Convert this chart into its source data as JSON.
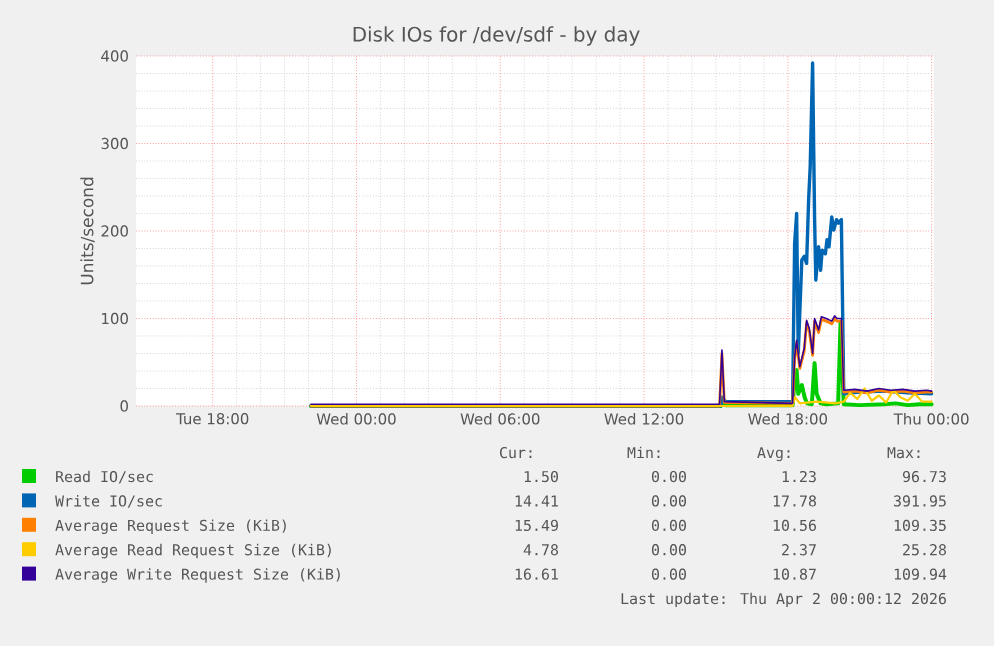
{
  "chart_data": {
    "type": "line",
    "title": "Disk IOs for /dev/sdf - by day",
    "ylabel": "Units/second",
    "xlim": [
      "2026-03-31T14:48",
      "2026-04-02T00:06"
    ],
    "xticks": [
      {
        "value": "2026-03-31T18:00",
        "label": "Tue 18:00"
      },
      {
        "value": "2026-04-01T00:00",
        "label": "Wed 00:00"
      },
      {
        "value": "2026-04-01T06:00",
        "label": "Wed 06:00"
      },
      {
        "value": "2026-04-01T12:00",
        "label": "Wed 12:00"
      },
      {
        "value": "2026-04-01T18:00",
        "label": "Wed 18:00"
      },
      {
        "value": "2026-04-02T00:00",
        "label": "Thu 00:00"
      }
    ],
    "ylim": [
      0,
      400
    ],
    "yticks": [
      0,
      100,
      200,
      300,
      400
    ],
    "grid": true,
    "legend": "bottom",
    "marker": "none",
    "line_style": "solid",
    "series": [
      {
        "name": "Read IO/sec",
        "color": "#00cc00",
        "x": [
          "2026-03-31T22:06",
          "2026-04-01T15:12",
          "2026-04-01T15:15",
          "2026-04-01T15:24",
          "2026-04-01T18:12",
          "2026-04-01T18:17",
          "2026-04-01T18:22",
          "2026-04-01T18:26",
          "2026-04-01T18:35",
          "2026-04-01T18:42",
          "2026-04-01T18:48",
          "2026-04-01T19:00",
          "2026-04-01T19:07",
          "2026-04-01T19:12",
          "2026-04-01T19:22",
          "2026-04-01T19:36",
          "2026-04-01T20:06",
          "2026-04-01T20:12",
          "2026-04-01T20:20",
          "2026-04-01T21:00",
          "2026-04-01T22:00",
          "2026-04-01T22:30",
          "2026-04-01T23:00",
          "2026-04-01T23:30",
          "2026-04-02T00:00"
        ],
        "values": [
          0,
          0,
          2,
          1,
          1,
          30,
          41,
          14,
          24,
          10,
          3,
          2,
          49,
          14,
          3,
          2,
          3,
          96,
          2,
          1,
          2,
          3,
          1,
          2,
          2
        ]
      },
      {
        "name": "Write IO/sec",
        "color": "#0066b3",
        "x": [
          "2026-03-31T22:06",
          "2026-04-01T15:12",
          "2026-04-01T15:15",
          "2026-04-01T15:24",
          "2026-04-01T18:12",
          "2026-04-01T18:17",
          "2026-04-01T18:22",
          "2026-04-01T18:26",
          "2026-04-01T18:35",
          "2026-04-01T18:41",
          "2026-04-01T18:47",
          "2026-04-01T18:52",
          "2026-04-01T18:56",
          "2026-04-01T19:02",
          "2026-04-01T19:07",
          "2026-04-01T19:10",
          "2026-04-01T19:17",
          "2026-04-01T19:22",
          "2026-04-01T19:26",
          "2026-04-01T19:34",
          "2026-04-01T19:38",
          "2026-04-01T19:43",
          "2026-04-01T19:50",
          "2026-04-01T19:55",
          "2026-04-01T20:02",
          "2026-04-01T20:07",
          "2026-04-01T20:14",
          "2026-04-01T20:20",
          "2026-04-01T21:00",
          "2026-04-01T22:00",
          "2026-04-01T23:00",
          "2026-04-02T00:00"
        ],
        "values": [
          0,
          0,
          10,
          5,
          5,
          186,
          220,
          60,
          167,
          171,
          163,
          235,
          274,
          392,
          213,
          144,
          182,
          155,
          178,
          174,
          190,
          182,
          216,
          201,
          213,
          209,
          213,
          14,
          16,
          17,
          15,
          14
        ]
      },
      {
        "name": "Average Request Size (KiB)",
        "color": "#ff8000",
        "x": [
          "2026-03-31T22:06",
          "2026-04-01T15:09",
          "2026-04-01T15:15",
          "2026-04-01T15:21",
          "2026-04-01T18:12",
          "2026-04-01T18:17",
          "2026-04-01T18:22",
          "2026-04-01T18:30",
          "2026-04-01T18:41",
          "2026-04-01T18:47",
          "2026-04-01T18:54",
          "2026-04-01T19:02",
          "2026-04-01T19:07",
          "2026-04-01T19:17",
          "2026-04-01T19:24",
          "2026-04-01T19:36",
          "2026-04-01T19:50",
          "2026-04-01T19:57",
          "2026-04-01T20:03",
          "2026-04-01T20:14",
          "2026-04-01T20:20",
          "2026-04-01T20:48",
          "2026-04-01T21:18",
          "2026-04-01T21:48",
          "2026-04-01T22:18",
          "2026-04-01T22:48",
          "2026-04-01T23:18",
          "2026-04-01T23:48",
          "2026-04-02T00:00"
        ],
        "values": [
          0,
          0,
          60,
          4,
          3,
          53,
          72,
          43,
          63,
          95,
          85,
          58,
          97,
          84,
          99,
          97,
          94,
          100,
          97,
          97,
          16,
          17,
          15,
          18,
          16,
          17,
          15,
          16,
          16
        ]
      },
      {
        "name": "Average Read Request Size (KiB)",
        "color": "#ffcc00",
        "x": [
          "2026-03-31T22:06",
          "2026-04-01T18:12",
          "2026-04-01T18:18",
          "2026-04-01T18:30",
          "2026-04-01T19:12",
          "2026-04-01T20:00",
          "2026-04-01T20:20",
          "2026-04-01T20:36",
          "2026-04-01T20:54",
          "2026-04-01T21:12",
          "2026-04-01T21:30",
          "2026-04-01T21:48",
          "2026-04-01T22:06",
          "2026-04-01T22:24",
          "2026-04-01T22:42",
          "2026-04-01T23:00",
          "2026-04-01T23:18",
          "2026-04-01T23:36",
          "2026-04-02T00:00"
        ],
        "values": [
          0,
          0,
          10,
          3,
          5,
          3,
          5,
          15,
          8,
          20,
          6,
          12,
          4,
          18,
          10,
          6,
          14,
          5,
          5
        ]
      },
      {
        "name": "Average Write Request Size (KiB)",
        "color": "#330099",
        "x": [
          "2026-03-31T22:06",
          "2026-04-01T15:09",
          "2026-04-01T15:15",
          "2026-04-01T15:21",
          "2026-04-01T18:12",
          "2026-04-01T18:17",
          "2026-04-01T18:22",
          "2026-04-01T18:30",
          "2026-04-01T18:41",
          "2026-04-01T18:47",
          "2026-04-01T18:54",
          "2026-04-01T19:02",
          "2026-04-01T19:07",
          "2026-04-01T19:17",
          "2026-04-01T19:24",
          "2026-04-01T19:36",
          "2026-04-01T19:50",
          "2026-04-01T19:57",
          "2026-04-01T20:03",
          "2026-04-01T20:14",
          "2026-04-01T20:20",
          "2026-04-01T20:48",
          "2026-04-01T21:18",
          "2026-04-01T21:48",
          "2026-04-01T22:18",
          "2026-04-01T22:48",
          "2026-04-01T23:18",
          "2026-04-01T23:48",
          "2026-04-02T00:00"
        ],
        "values": [
          2,
          2,
          64,
          5,
          3,
          56,
          75,
          45,
          66,
          98,
          88,
          60,
          100,
          87,
          102,
          100,
          97,
          103,
          100,
          100,
          18,
          19,
          17,
          20,
          18,
          19,
          17,
          18,
          17
        ]
      }
    ],
    "annotations": [
      "Cur:",
      "Min:",
      "Avg:",
      "Max:",
      "1.50",
      "0.00",
      "1.23",
      "96.73",
      "14.41",
      "0.00",
      "17.78",
      "391.95",
      "15.49",
      "0.00",
      "10.56",
      "109.35",
      "4.78",
      "0.00",
      "2.37",
      "25.28",
      "16.61",
      "0.00",
      "10.87",
      "109.94",
      "Last update: Thu Apr  2 00:00:12 2026"
    ]
  }
}
